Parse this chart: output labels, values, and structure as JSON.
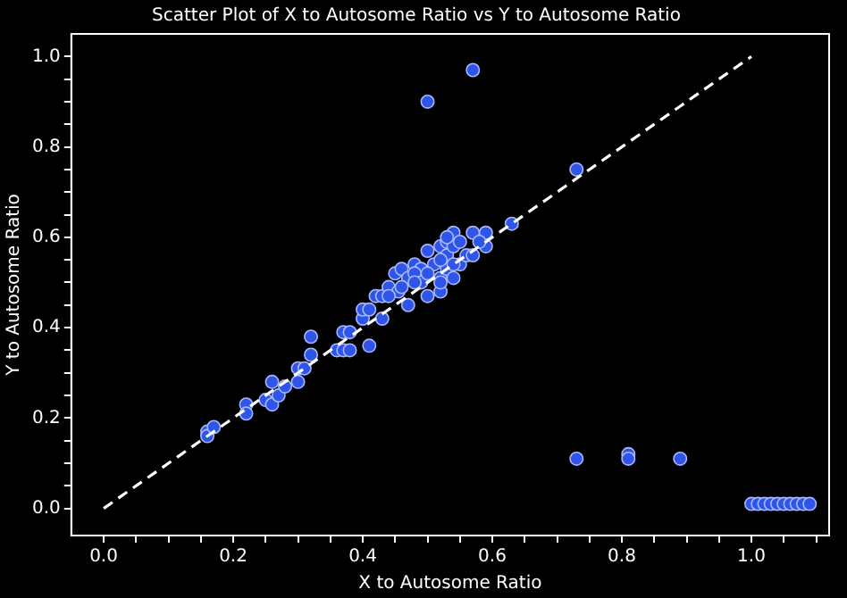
{
  "chart_data": {
    "type": "scatter",
    "title": "Scatter Plot of X to Autosome Ratio vs Y to Autosome Ratio",
    "xlabel": "X to Autosome Ratio",
    "ylabel": "Y to Autosome Ratio",
    "marker": "circle",
    "xlim": [
      -0.05,
      1.12
    ],
    "ylim": [
      -0.06,
      1.05
    ],
    "xticks": [
      {
        "value": 0,
        "label": "0.0"
      },
      {
        "value": 0.05,
        "label": null
      },
      {
        "value": 0.1,
        "label": null
      },
      {
        "value": 0.15,
        "label": null
      },
      {
        "value": 0.2,
        "label": "0.2"
      },
      {
        "value": 0.25,
        "label": null
      },
      {
        "value": 0.3,
        "label": null
      },
      {
        "value": 0.35,
        "label": null
      },
      {
        "value": 0.4,
        "label": "0.4"
      },
      {
        "value": 0.45,
        "label": null
      },
      {
        "value": 0.5,
        "label": null
      },
      {
        "value": 0.55,
        "label": null
      },
      {
        "value": 0.6,
        "label": "0.6"
      },
      {
        "value": 0.65,
        "label": null
      },
      {
        "value": 0.7,
        "label": null
      },
      {
        "value": 0.75,
        "label": null
      },
      {
        "value": 0.8,
        "label": "0.8"
      },
      {
        "value": 0.85,
        "label": null
      },
      {
        "value": 0.9,
        "label": null
      },
      {
        "value": 0.95,
        "label": null
      },
      {
        "value": 1,
        "label": "1.0"
      },
      {
        "value": 1.05,
        "label": null
      },
      {
        "value": 1.1,
        "label": null
      }
    ],
    "yticks": [
      {
        "value": 0,
        "label": "0.0"
      },
      {
        "value": 0.05,
        "label": null
      },
      {
        "value": 0.1,
        "label": null
      },
      {
        "value": 0.15,
        "label": null
      },
      {
        "value": 0.2,
        "label": "0.2"
      },
      {
        "value": 0.25,
        "label": null
      },
      {
        "value": 0.3,
        "label": null
      },
      {
        "value": 0.35,
        "label": null
      },
      {
        "value": 0.4,
        "label": "0.4"
      },
      {
        "value": 0.45,
        "label": null
      },
      {
        "value": 0.5,
        "label": null
      },
      {
        "value": 0.55,
        "label": null
      },
      {
        "value": 0.6,
        "label": "0.6"
      },
      {
        "value": 0.65,
        "label": null
      },
      {
        "value": 0.7,
        "label": null
      },
      {
        "value": 0.75,
        "label": null
      },
      {
        "value": 0.8,
        "label": "0.8"
      },
      {
        "value": 0.85,
        "label": null
      },
      {
        "value": 0.9,
        "label": null
      },
      {
        "value": 0.95,
        "label": null
      },
      {
        "value": 1,
        "label": "1.0"
      }
    ],
    "series": [
      {
        "type": "line",
        "color": "#ffffff",
        "line_style": "dashed",
        "marker": "none",
        "x": [
          0,
          1
        ],
        "values": [
          0,
          1
        ]
      },
      {
        "color": "#2f55e8",
        "x": [
          0.16,
          0.16,
          0.17,
          0.22,
          0.22,
          0.25,
          0.26,
          0.26,
          0.27,
          0.28,
          0.3,
          0.3,
          0.31,
          0.32,
          0.32,
          0.36,
          0.37,
          0.37,
          0.38,
          0.38,
          0.41,
          0.4,
          0.4,
          0.41,
          0.43,
          0.42,
          0.43,
          0.44,
          0.45,
          0.46,
          0.455,
          0.47,
          0.47,
          0.48,
          0.49,
          0.5,
          0.5,
          0.51,
          0.52,
          0.52,
          0.52,
          0.53,
          0.53,
          0.54,
          0.54,
          0.53,
          0.54,
          0.55,
          0.55,
          0.56,
          0.57,
          0.57,
          0.59,
          0.59,
          0.58,
          0.48,
          0.49,
          0.46,
          0.44,
          0.52,
          0.5,
          0.53,
          0.54,
          0.48,
          0.52,
          0.63,
          0.73,
          0.5,
          0.57,
          0.73,
          0.81,
          0.81,
          0.89,
          1.0,
          1.01,
          1.02,
          1.03,
          1.04,
          1.05,
          1.06,
          1.07,
          1.08,
          1.09
        ],
        "values": [
          0.17,
          0.16,
          0.18,
          0.23,
          0.21,
          0.24,
          0.28,
          0.23,
          0.25,
          0.27,
          0.31,
          0.28,
          0.31,
          0.34,
          0.38,
          0.35,
          0.39,
          0.35,
          0.39,
          0.35,
          0.36,
          0.42,
          0.44,
          0.44,
          0.42,
          0.47,
          0.47,
          0.49,
          0.52,
          0.53,
          0.48,
          0.45,
          0.51,
          0.54,
          0.53,
          0.57,
          0.47,
          0.54,
          0.51,
          0.48,
          0.58,
          0.59,
          0.56,
          0.61,
          0.58,
          0.53,
          0.51,
          0.59,
          0.54,
          0.56,
          0.61,
          0.56,
          0.61,
          0.58,
          0.59,
          0.52,
          0.5,
          0.49,
          0.47,
          0.55,
          0.52,
          0.6,
          0.54,
          0.5,
          0.5,
          0.63,
          0.75,
          0.9,
          0.97,
          0.11,
          0.12,
          0.11,
          0.11,
          0.01,
          0.01,
          0.01,
          0.01,
          0.01,
          0.01,
          0.01,
          0.01,
          0.01,
          0.01
        ]
      }
    ]
  }
}
